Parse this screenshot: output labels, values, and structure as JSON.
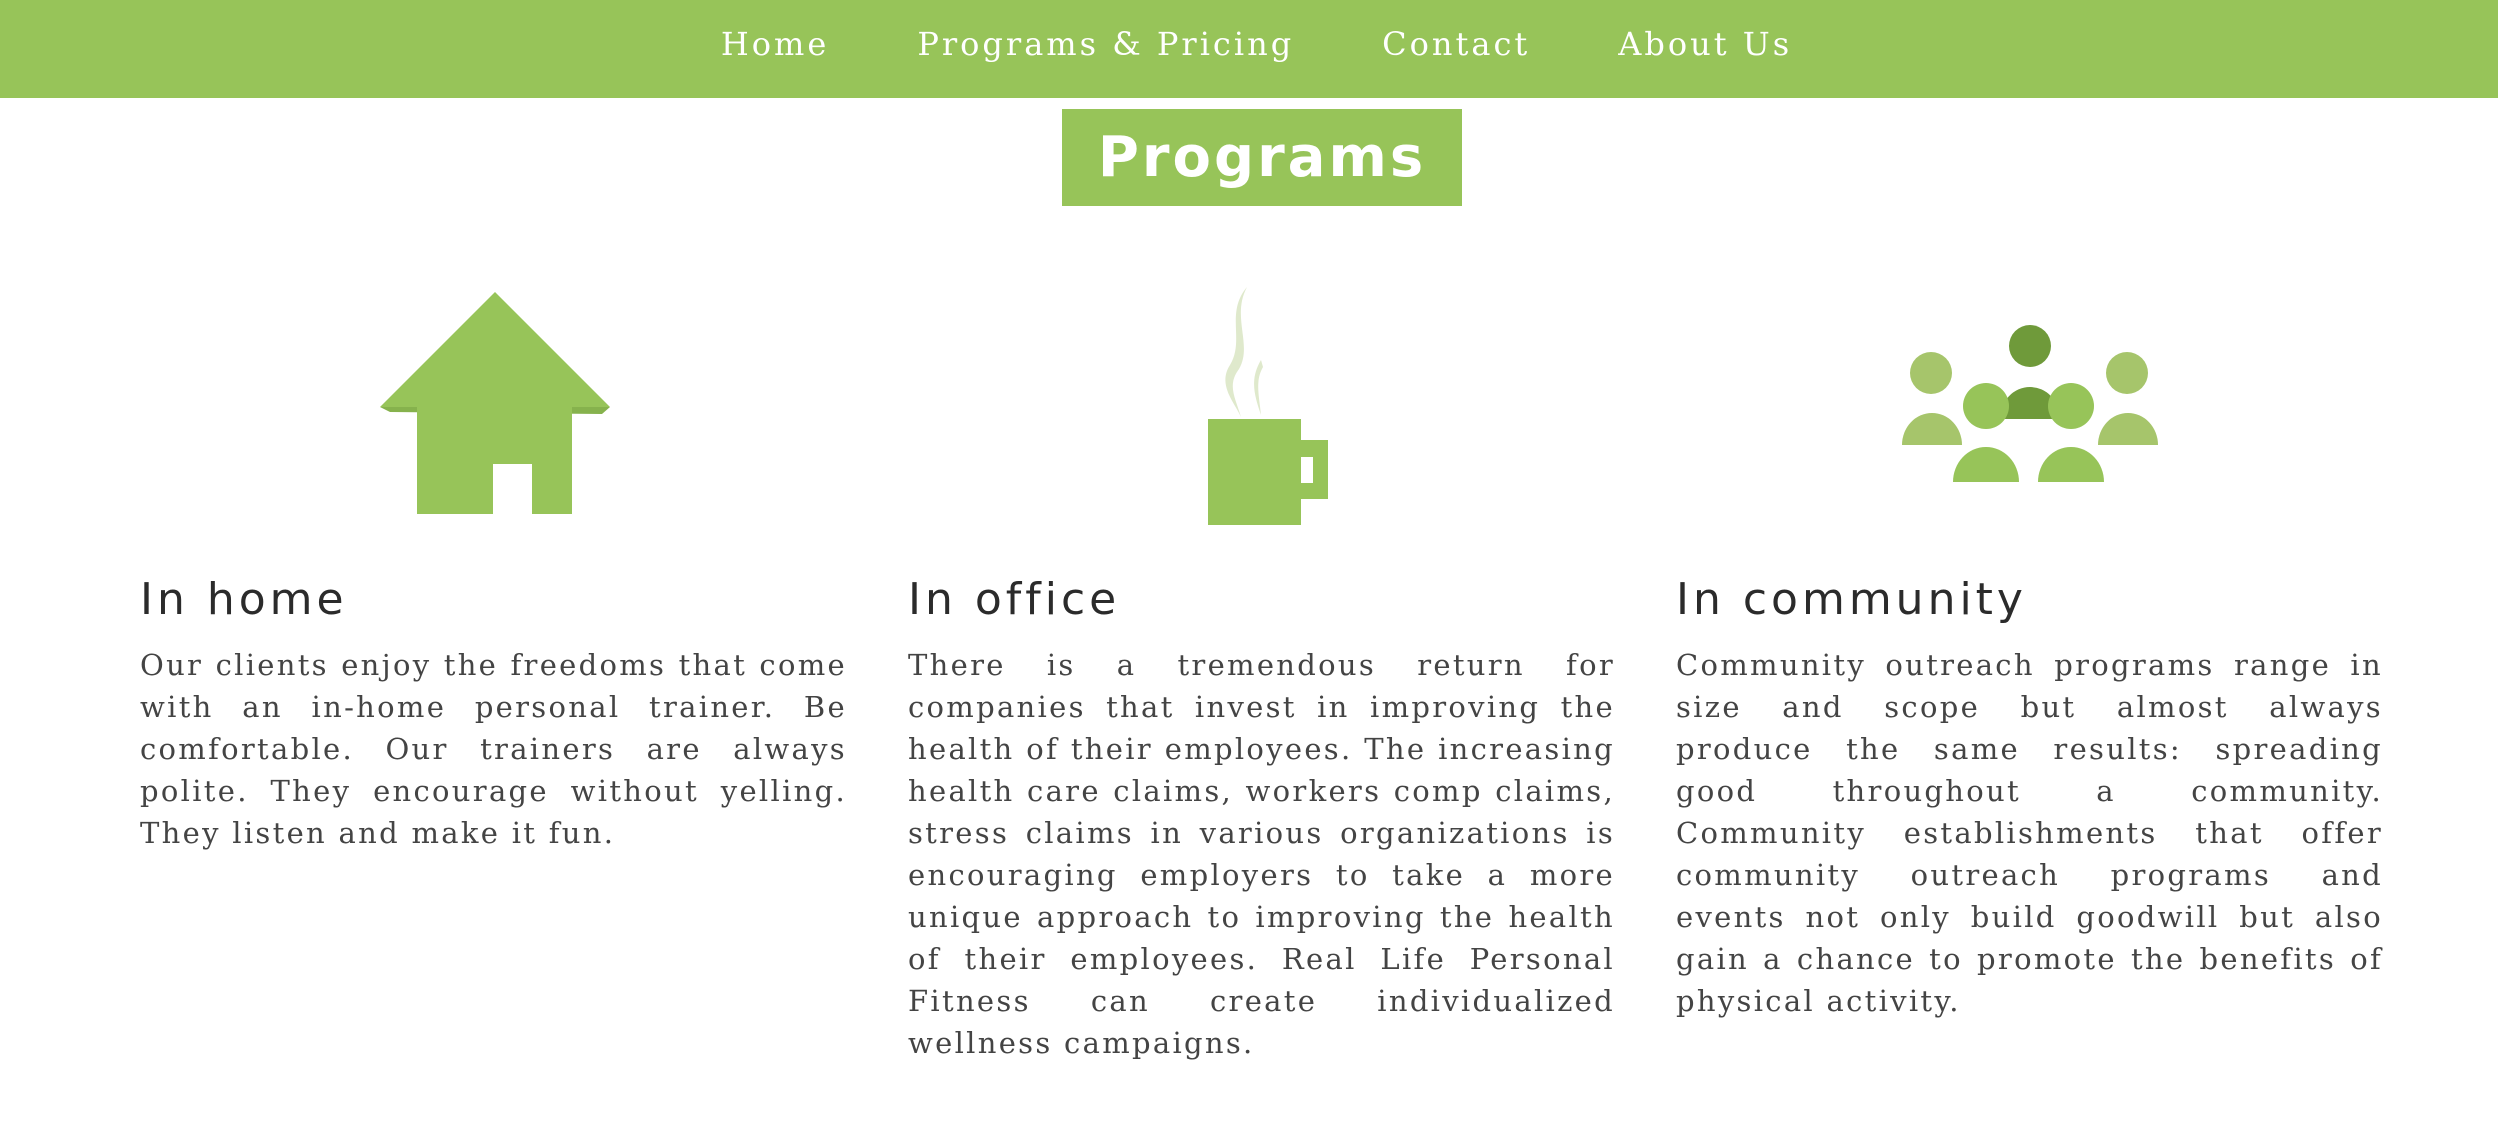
{
  "nav": {
    "items": [
      {
        "label": "Home"
      },
      {
        "label": "Programs & Pricing"
      },
      {
        "label": "Contact"
      },
      {
        "label": "About Us"
      }
    ]
  },
  "banner": {
    "title": "Programs"
  },
  "programs": [
    {
      "heading": "In home",
      "icon": "house-icon",
      "text": "Our clients enjoy the freedoms that come with an in-home personal trainer. Be comfortable. Our trainers are always polite. They encourage without yelling. They listen and make it fun."
    },
    {
      "heading": "In office",
      "icon": "coffee-mug-icon",
      "text": "There is a tremendous return for companies that invest in improving the health of their employees. The increasing health care claims, workers comp claims, stress claims in various organizations is encouraging employers to take a more unique approach to improving the health of their employees. Real Life Personal Fitness can create individualized wellness campaigns."
    },
    {
      "heading": "In community",
      "icon": "people-group-icon",
      "text": "Community outreach programs range in size and scope but almost always produce the same results: spreading good throughout a community. Community establishments that offer community outreach programs and events not only build goodwill but also gain a chance to promote the benefits of physical activity."
    }
  ],
  "colors": {
    "accent": "#97c459",
    "accent_dark": "#6f9a3a",
    "accent_light": "#a6c56b",
    "steam": "#dfe9cc",
    "heading_text": "#2b2b2b",
    "body_text": "#444444"
  }
}
